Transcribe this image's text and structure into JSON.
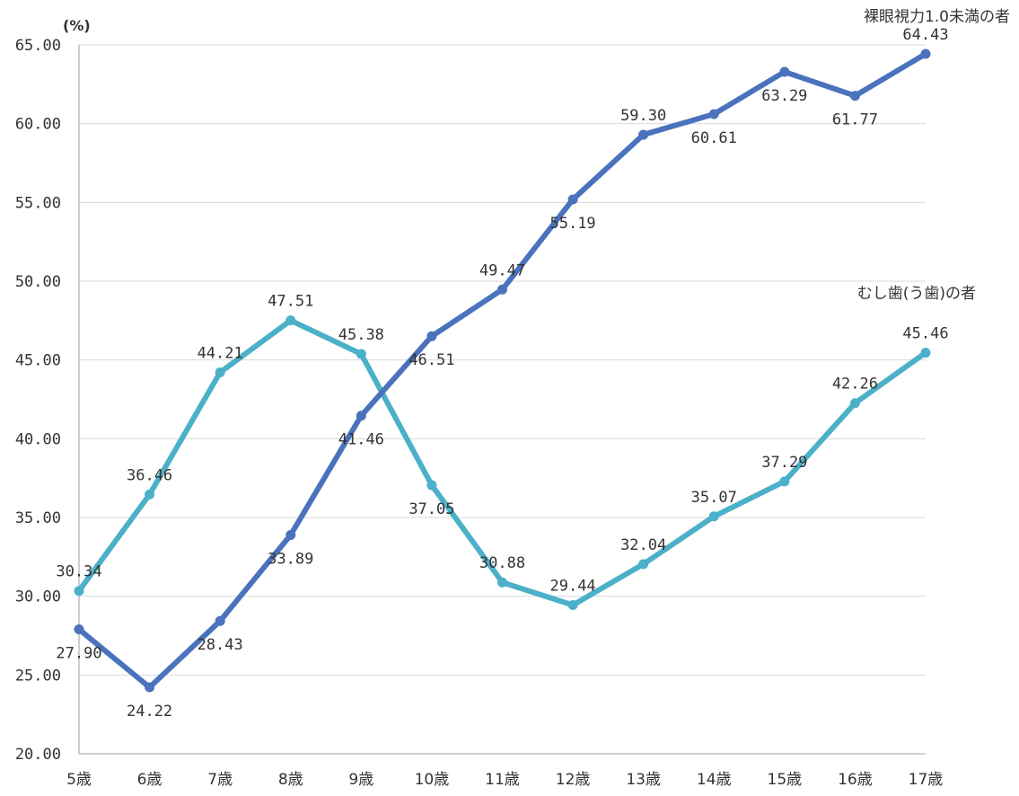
{
  "chart_data": {
    "type": "line",
    "ylabel": "(%)",
    "ylim": [
      20,
      65
    ],
    "ytick_step": 5,
    "yticks": [
      "20.00",
      "25.00",
      "30.00",
      "35.00",
      "40.00",
      "45.00",
      "50.00",
      "55.00",
      "60.00",
      "65.00"
    ],
    "categories": [
      "5歳",
      "6歳",
      "7歳",
      "8歳",
      "9歳",
      "10歳",
      "11歳",
      "12歳",
      "13歳",
      "14歳",
      "15歳",
      "16歳",
      "17歳"
    ],
    "grid": true,
    "series": [
      {
        "name": "裸眼視力1.0未満の者",
        "color": "#4a72bd",
        "values": [
          27.9,
          24.22,
          28.43,
          33.89,
          41.46,
          46.51,
          49.47,
          55.19,
          59.3,
          60.61,
          63.29,
          61.77,
          64.43
        ],
        "labels": [
          "27.90",
          "24.22",
          "28.43",
          "33.89",
          "41.46",
          "46.51",
          "49.47",
          "55.19",
          "59.30",
          "60.61",
          "63.29",
          "61.77",
          "64.43"
        ]
      },
      {
        "name": "むし歯(う歯)の者",
        "color": "#4bb0c8",
        "values": [
          30.34,
          36.46,
          44.21,
          47.51,
          45.38,
          37.05,
          30.88,
          29.44,
          32.04,
          35.07,
          37.29,
          42.26,
          45.46
        ],
        "labels": [
          "30.34",
          "36.46",
          "44.21",
          "47.51",
          "45.38",
          "37.05",
          "30.88",
          "29.44",
          "32.04",
          "35.07",
          "37.29",
          "42.26",
          "45.46"
        ]
      }
    ]
  }
}
